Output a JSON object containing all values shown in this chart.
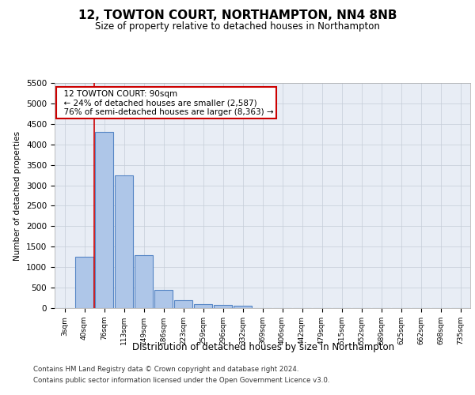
{
  "title_line1": "12, TOWTON COURT, NORTHAMPTON, NN4 8NB",
  "title_line2": "Size of property relative to detached houses in Northampton",
  "xlabel": "Distribution of detached houses by size in Northampton",
  "ylabel": "Number of detached properties",
  "categories": [
    "3sqm",
    "40sqm",
    "76sqm",
    "113sqm",
    "149sqm",
    "186sqm",
    "223sqm",
    "259sqm",
    "296sqm",
    "332sqm",
    "369sqm",
    "406sqm",
    "442sqm",
    "479sqm",
    "515sqm",
    "552sqm",
    "589sqm",
    "625sqm",
    "662sqm",
    "698sqm",
    "735sqm"
  ],
  "bar_values": [
    0,
    1250,
    4300,
    3250,
    1300,
    450,
    200,
    100,
    75,
    50,
    0,
    0,
    0,
    0,
    0,
    0,
    0,
    0,
    0,
    0,
    0
  ],
  "bar_color": "#aec6e8",
  "bar_edge_color": "#5585c5",
  "background_color": "#e8edf5",
  "ylim": [
    0,
    5500
  ],
  "yticks": [
    0,
    500,
    1000,
    1500,
    2000,
    2500,
    3000,
    3500,
    4000,
    4500,
    5000,
    5500
  ],
  "property_line_x": 2.0,
  "annotation_text": "  12 TOWTON COURT: 90sqm\n  ← 24% of detached houses are smaller (2,587)\n  76% of semi-detached houses are larger (8,363) →",
  "annotation_box_color": "#ffffff",
  "annotation_box_edge": "#cc0000",
  "footer_line1": "Contains HM Land Registry data © Crown copyright and database right 2024.",
  "footer_line2": "Contains public sector information licensed under the Open Government Licence v3.0."
}
